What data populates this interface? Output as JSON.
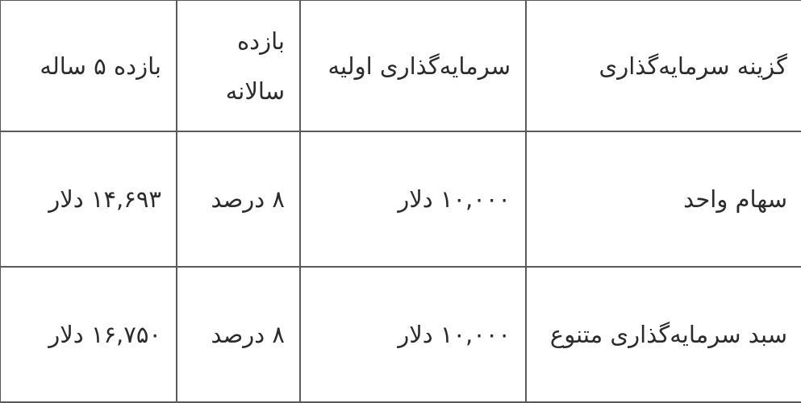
{
  "table": {
    "headers": [
      "گزینه سرمایه‌گذاری",
      "سرمایه‌گذاری اولیه",
      "بازده سالانه",
      "بازده ۵ ساله"
    ],
    "rows": [
      [
        "سهام واحد",
        "۱۰,۰۰۰ دلار",
        "۸ درصد",
        "۱۴,۶۹۳ دلار"
      ],
      [
        "سبد سرمایه‌گذاری متنوع",
        "۱۰,۰۰۰ دلار",
        "۸ درصد",
        "۱۶,۷۵۰ دلار"
      ]
    ]
  }
}
